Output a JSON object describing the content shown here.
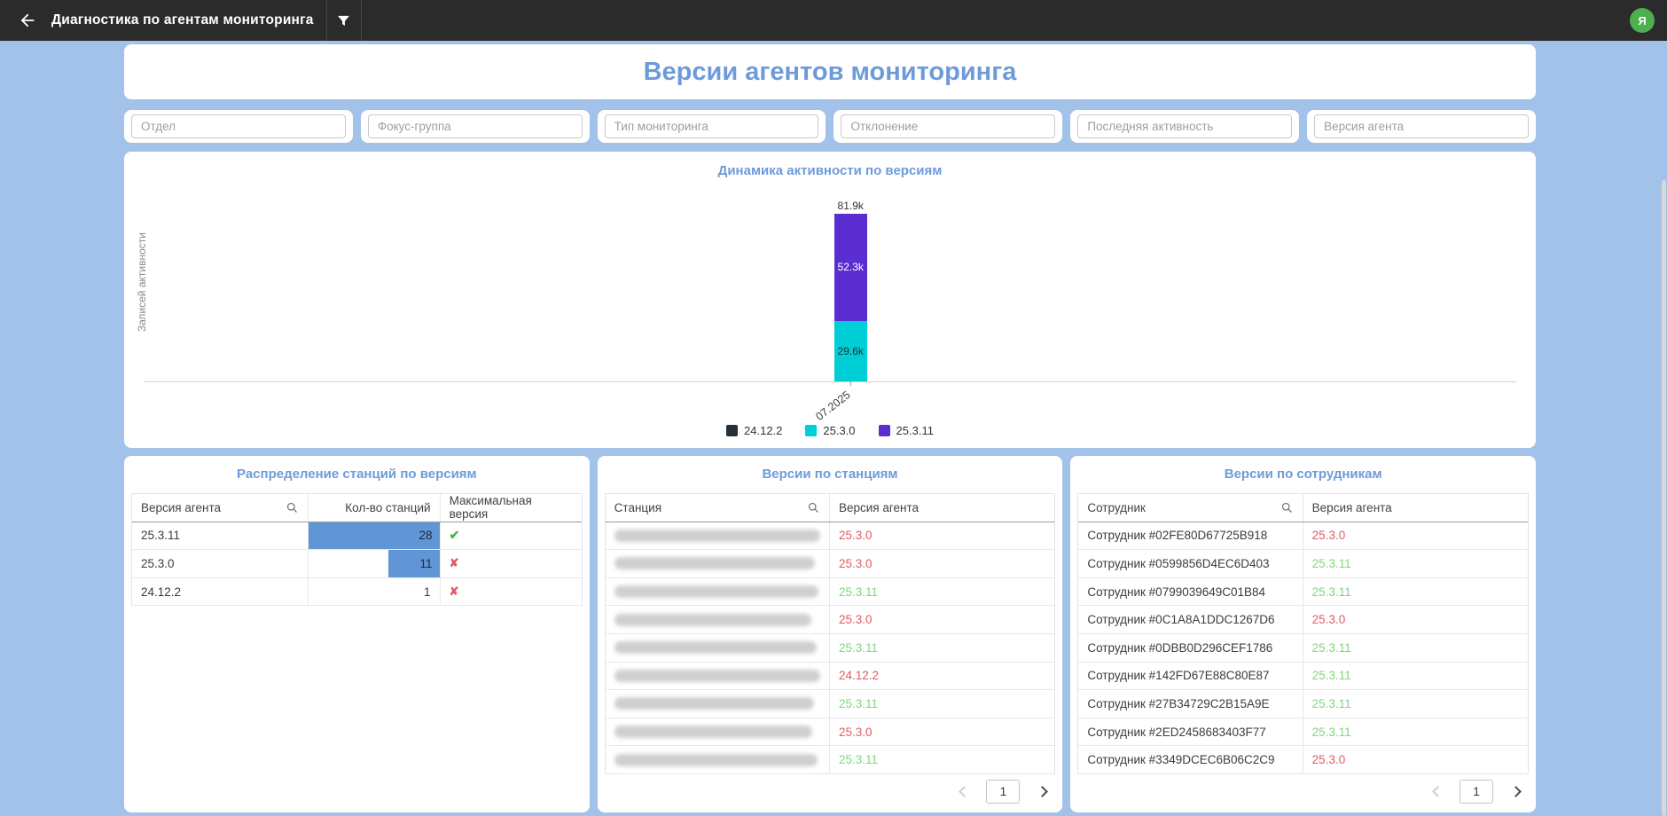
{
  "topbar": {
    "title": "Диагностика по агентам мониторинга",
    "avatar_initial": "Я"
  },
  "page_title": "Версии агентов мониторинга",
  "filters": [
    {
      "name": "department",
      "placeholder": "Отдел"
    },
    {
      "name": "focus-group",
      "placeholder": "Фокус-группа"
    },
    {
      "name": "monitoring-type",
      "placeholder": "Тип мониторинга"
    },
    {
      "name": "deviation",
      "placeholder": "Отклонение"
    },
    {
      "name": "last-activity",
      "placeholder": "Последняя активность"
    },
    {
      "name": "agent-version",
      "placeholder": "Версия агента"
    }
  ],
  "chart_data": {
    "type": "bar",
    "stacked": true,
    "title": "Динамика активности по версиям",
    "ylabel": "Записей активности",
    "x": [
      "07.2025"
    ],
    "series": [
      {
        "name": "24.12.2",
        "color": "#263238",
        "values": [
          0
        ],
        "label": "",
        "label_color": "#ffffff"
      },
      {
        "name": "25.3.0",
        "color": "#00ced6",
        "values": [
          29600
        ],
        "label": "29.6k",
        "label_color": "#263238"
      },
      {
        "name": "25.3.11",
        "color": "#5b2ed1",
        "values": [
          52300
        ],
        "label": "52.3k",
        "label_color": "#ffffff"
      }
    ],
    "total": 81900,
    "total_label": "81.9k",
    "legend_position": "bottom",
    "grid": false
  },
  "distribution_table": {
    "title": "Распределение станций по версиям",
    "headers": [
      "Версия агента",
      "Кол-во станций",
      "Максимальная версия"
    ],
    "rows": [
      {
        "version": "25.3.11",
        "count": "28",
        "bar_pct": 100,
        "is_max": true
      },
      {
        "version": "25.3.0",
        "count": "11",
        "bar_pct": 39,
        "is_max": false
      },
      {
        "version": "24.12.2",
        "count": "1",
        "bar_pct": 0,
        "is_max": false
      }
    ]
  },
  "stations_table": {
    "title": "Версии по станциям",
    "headers": [
      "Станция",
      "Версия агента"
    ],
    "rows": [
      {
        "version": "25.3.0",
        "status": "outdated"
      },
      {
        "version": "25.3.0",
        "status": "outdated"
      },
      {
        "version": "25.3.11",
        "status": "ok"
      },
      {
        "version": "25.3.0",
        "status": "outdated"
      },
      {
        "version": "25.3.11",
        "status": "ok"
      },
      {
        "version": "24.12.2",
        "status": "outdated"
      },
      {
        "version": "25.3.11",
        "status": "ok"
      },
      {
        "version": "25.3.0",
        "status": "outdated"
      },
      {
        "version": "25.3.11",
        "status": "ok"
      }
    ],
    "pagination": {
      "page": "1"
    }
  },
  "employees_table": {
    "title": "Версии по сотрудникам",
    "headers": [
      "Сотрудник",
      "Версия агента"
    ],
    "rows": [
      {
        "name": "Сотрудник #02FE80D67725B918",
        "version": "25.3.0",
        "status": "outdated"
      },
      {
        "name": "Сотрудник #0599856D4EC6D403",
        "version": "25.3.11",
        "status": "ok"
      },
      {
        "name": "Сотрудник #0799039649C01B84",
        "version": "25.3.11",
        "status": "ok"
      },
      {
        "name": "Сотрудник #0C1A8A1DDC1267D6",
        "version": "25.3.0",
        "status": "outdated"
      },
      {
        "name": "Сотрудник #0DBB0D296CEF1786",
        "version": "25.3.11",
        "status": "ok"
      },
      {
        "name": "Сотрудник #142FD67E88C80E87",
        "version": "25.3.11",
        "status": "ok"
      },
      {
        "name": "Сотрудник #27B34729C2B15A9E",
        "version": "25.3.11",
        "status": "ok"
      },
      {
        "name": "Сотрудник #2ED2458683403F77",
        "version": "25.3.11",
        "status": "ok"
      },
      {
        "name": "Сотрудник #3349DCEC6B06C2C9",
        "version": "25.3.0",
        "status": "outdated"
      }
    ],
    "pagination": {
      "page": "1"
    }
  },
  "status_colors": {
    "ok": "#7fd67f",
    "outdated": "#e05a66"
  },
  "icons": {
    "max_ok": "✔",
    "max_bad": "✘"
  }
}
